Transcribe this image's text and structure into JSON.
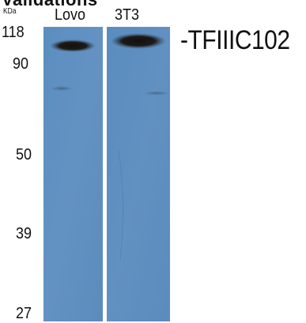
{
  "heading_partial": "Validations",
  "unit": "KDa",
  "lanes": [
    {
      "label": "Lovo"
    },
    {
      "label": "3T3"
    }
  ],
  "markers": [
    "118",
    "90",
    "50",
    "39",
    "27"
  ],
  "target": "-TFIIIC102",
  "colors": {
    "membrane": "#5d8fbf",
    "band": "#1a1614",
    "divider": "#ffffff"
  }
}
